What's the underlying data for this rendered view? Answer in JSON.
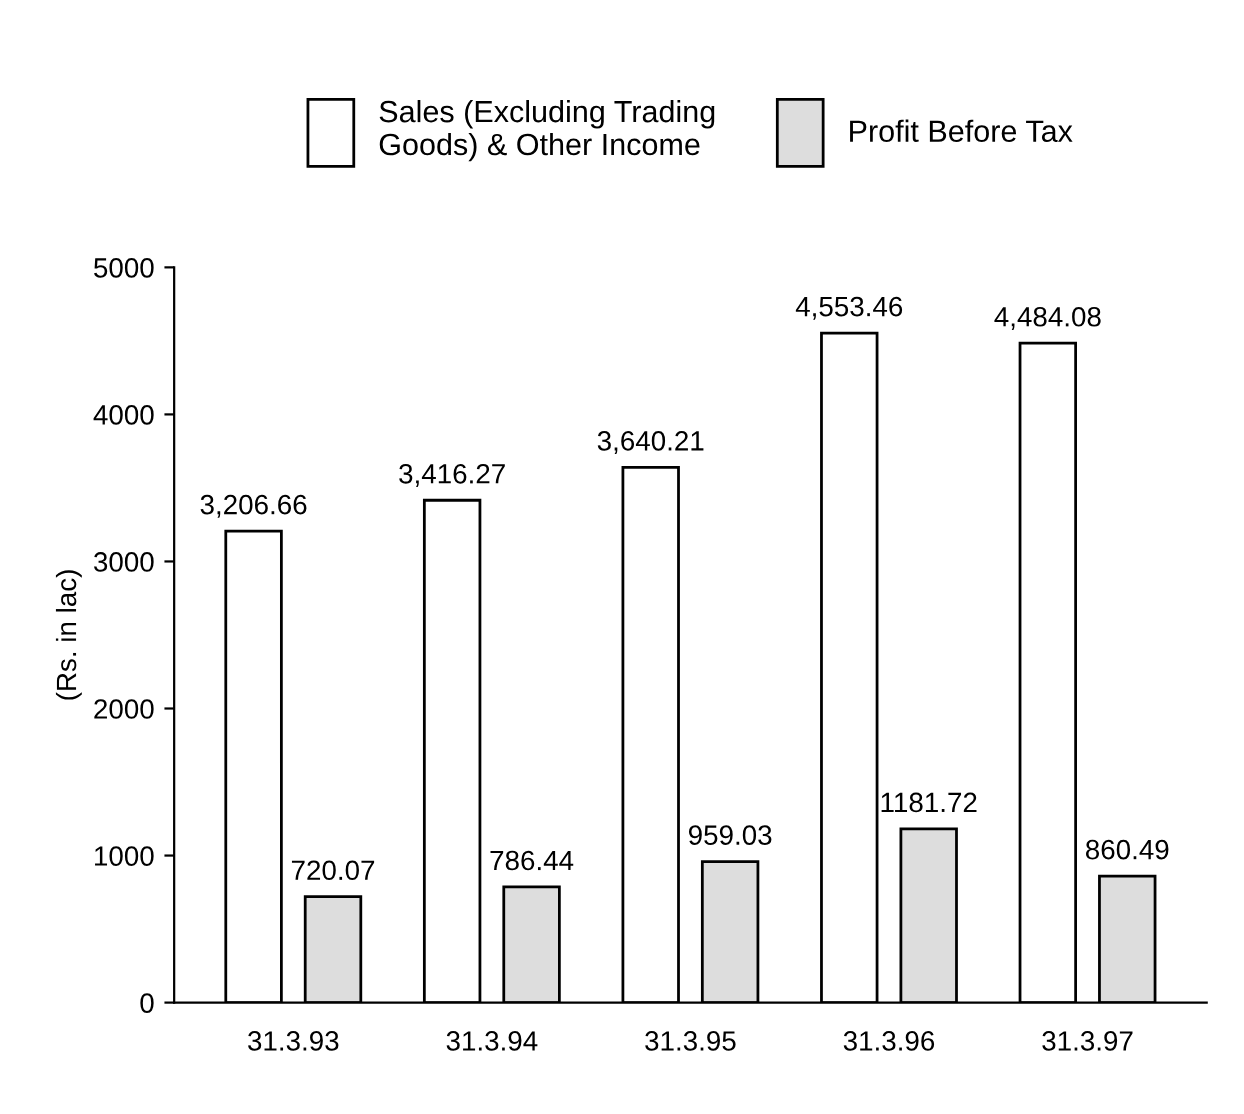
{
  "chart_data": {
    "type": "bar",
    "ylabel": "(Rs. in lac)",
    "categories": [
      "31.3.93",
      "31.3.94",
      "31.3.95",
      "31.3.96",
      "31.3.97"
    ],
    "series": [
      {
        "name": "Sales (Excluding Trading\nGoods) & Other Income",
        "color": "#ffffff",
        "values": [
          3206.66,
          3416.27,
          3640.21,
          4553.46,
          4484.08
        ],
        "value_labels": [
          "3,206.66",
          "3,416.27",
          "3,640.21",
          "4,553.46",
          "4,484.08"
        ]
      },
      {
        "name": "Profit Before Tax",
        "color": "#dddddd",
        "values": [
          720.07,
          786.44,
          959.03,
          1181.72,
          860.49
        ],
        "value_labels": [
          "720.07",
          "786.44",
          "959.03",
          "1181.72",
          "860.49"
        ]
      }
    ],
    "ylim": [
      0,
      5000
    ],
    "yticks": [
      0,
      1000,
      2000,
      3000,
      4000,
      5000
    ],
    "grid": false,
    "legend": "top"
  }
}
